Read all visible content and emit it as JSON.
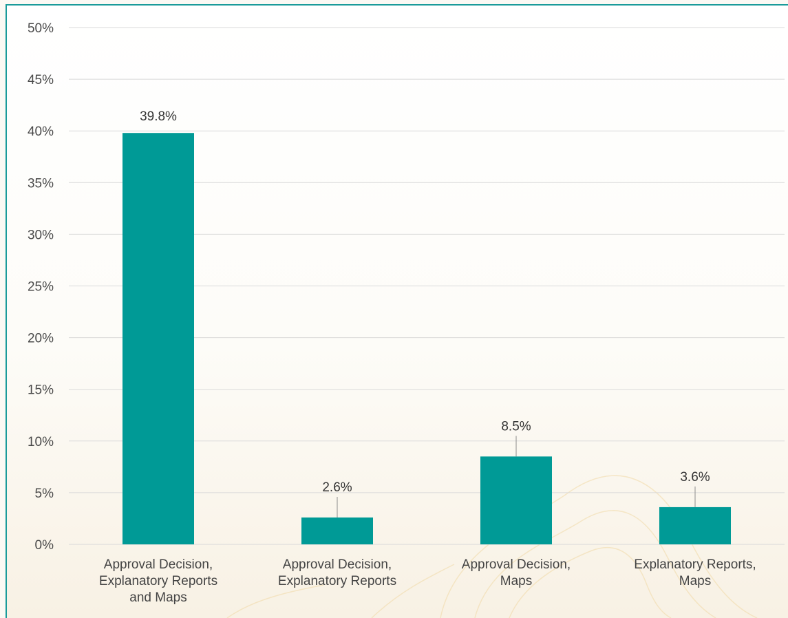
{
  "colors": {
    "bar": "#009a96",
    "frame": "#1a9b9a"
  },
  "chart_data": {
    "type": "bar",
    "categories": [
      [
        "Approval Decision,",
        "Explanatory Reports",
        "and Maps"
      ],
      [
        "Approval Decision,",
        "Explanatory Reports"
      ],
      [
        "Approval Decision,",
        "Maps"
      ],
      [
        "Explanatory Reports,",
        "Maps"
      ]
    ],
    "values": [
      39.8,
      2.6,
      8.5,
      3.6
    ],
    "data_labels": [
      "39.8%",
      "2.6%",
      "8.5%",
      "3.6%"
    ],
    "ylim": [
      0,
      50
    ],
    "yticks": [
      0,
      5,
      10,
      15,
      20,
      25,
      30,
      35,
      40,
      45,
      50
    ],
    "ytick_labels": [
      "0%",
      "5%",
      "10%",
      "15%",
      "20%",
      "25%",
      "30%",
      "35%",
      "40%",
      "45%",
      "50%"
    ],
    "grid": true,
    "legend": "none"
  }
}
